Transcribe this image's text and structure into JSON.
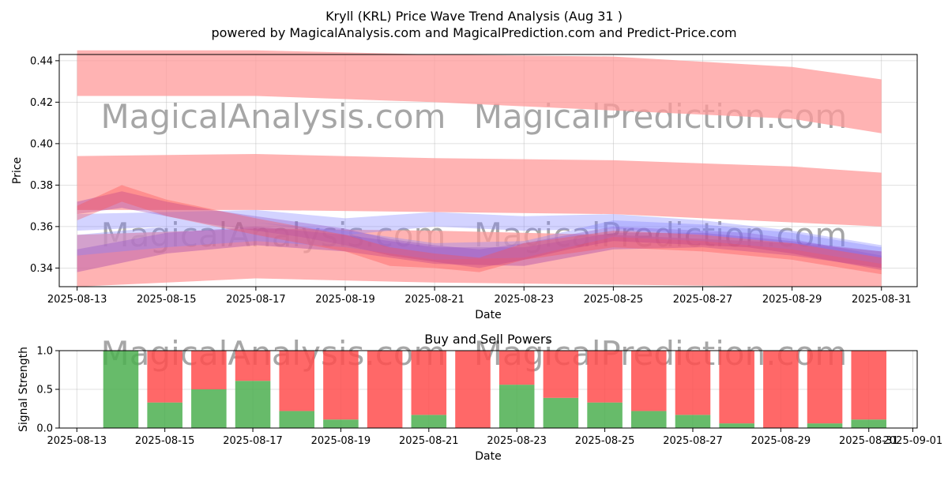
{
  "title_line1": "Kryll (KRL) Price Wave Trend Analysis (Aug 31 )",
  "title_line2": "powered by MagicalAnalysis.com and MagicalPrediction.com and Predict-Price.com",
  "watermarks": [
    "MagicalAnalysis.com",
    "MagicalPrediction.com"
  ],
  "colors": {
    "buy": "#4caf50",
    "sell": "#ff4d4d",
    "band": "#ff9999",
    "wave_blue": "#8080ff",
    "wave_purple": "#9933aa"
  },
  "chart_data": [
    {
      "type": "area",
      "xlabel": "Date",
      "ylabel": "Price",
      "xlim": [
        "2025-08-12.6",
        "2025-08-31.8"
      ],
      "ylim": [
        0.331,
        0.443
      ],
      "x_ticks": [
        "2025-08-13",
        "2025-08-15",
        "2025-08-17",
        "2025-08-19",
        "2025-08-21",
        "2025-08-23",
        "2025-08-25",
        "2025-08-27",
        "2025-08-29",
        "2025-08-31"
      ],
      "y_ticks": [
        0.34,
        0.36,
        0.38,
        0.4,
        0.42,
        0.44
      ],
      "grid": true,
      "bands": [
        {
          "x": [
            "2025-08-13",
            "2025-08-17",
            "2025-08-21",
            "2025-08-25",
            "2025-08-29",
            "2025-08-31"
          ],
          "upper": [
            0.445,
            0.445,
            0.443,
            0.442,
            0.437,
            0.431
          ],
          "lower": [
            0.423,
            0.423,
            0.42,
            0.416,
            0.412,
            0.405
          ]
        },
        {
          "x": [
            "2025-08-13",
            "2025-08-17",
            "2025-08-21",
            "2025-08-25",
            "2025-08-29",
            "2025-08-31"
          ],
          "upper": [
            0.394,
            0.395,
            0.393,
            0.392,
            0.389,
            0.386
          ],
          "lower": [
            0.368,
            0.368,
            0.367,
            0.366,
            0.362,
            0.36
          ]
        },
        {
          "x": [
            "2025-08-13",
            "2025-08-17",
            "2025-08-21",
            "2025-08-25",
            "2025-08-29",
            "2025-08-31"
          ],
          "upper": [
            0.356,
            0.359,
            0.358,
            0.356,
            0.352,
            0.348
          ],
          "lower": [
            0.331,
            0.335,
            0.333,
            0.332,
            0.331,
            0.331
          ]
        }
      ],
      "waves": [
        {
          "color": "wave_purple",
          "x": [
            "2025-08-13",
            "2025-08-14",
            "2025-08-15",
            "2025-08-16",
            "2025-08-17",
            "2025-08-18",
            "2025-08-19",
            "2025-08-20",
            "2025-08-21",
            "2025-08-22",
            "2025-08-23",
            "2025-08-24",
            "2025-08-25",
            "2025-08-26",
            "2025-08-27",
            "2025-08-28",
            "2025-08-29",
            "2025-08-30",
            "2025-08-31"
          ],
          "upper": [
            0.372,
            0.377,
            0.372,
            0.368,
            0.365,
            0.362,
            0.359,
            0.354,
            0.351,
            0.349,
            0.352,
            0.356,
            0.36,
            0.359,
            0.358,
            0.357,
            0.354,
            0.35,
            0.346
          ],
          "lower": [
            0.366,
            0.369,
            0.365,
            0.361,
            0.358,
            0.355,
            0.351,
            0.346,
            0.343,
            0.34,
            0.344,
            0.349,
            0.353,
            0.352,
            0.351,
            0.35,
            0.347,
            0.343,
            0.339
          ]
        },
        {
          "color": "wave_blue",
          "x": [
            "2025-08-13",
            "2025-08-15",
            "2025-08-17",
            "2025-08-19",
            "2025-08-21",
            "2025-08-23",
            "2025-08-25",
            "2025-08-27",
            "2025-08-29",
            "2025-08-31"
          ],
          "upper": [
            0.366,
            0.367,
            0.368,
            0.364,
            0.367,
            0.365,
            0.366,
            0.363,
            0.358,
            0.351
          ],
          "lower": [
            0.358,
            0.36,
            0.362,
            0.356,
            0.36,
            0.358,
            0.359,
            0.356,
            0.352,
            0.345
          ]
        },
        {
          "color": "wave_purple",
          "x": [
            "2025-08-13",
            "2025-08-15",
            "2025-08-17",
            "2025-08-19",
            "2025-08-21",
            "2025-08-23",
            "2025-08-25",
            "2025-08-27",
            "2025-08-29",
            "2025-08-31"
          ],
          "upper": [
            0.349,
            0.357,
            0.36,
            0.356,
            0.35,
            0.35,
            0.357,
            0.357,
            0.353,
            0.348
          ],
          "lower": [
            0.338,
            0.347,
            0.351,
            0.348,
            0.342,
            0.341,
            0.349,
            0.35,
            0.346,
            0.34
          ]
        },
        {
          "color": "wave_blue",
          "x": [
            "2025-08-13",
            "2025-08-15",
            "2025-08-17",
            "2025-08-19",
            "2025-08-21",
            "2025-08-23",
            "2025-08-25",
            "2025-08-27",
            "2025-08-29",
            "2025-08-31"
          ],
          "upper": [
            0.356,
            0.36,
            0.362,
            0.358,
            0.352,
            0.353,
            0.363,
            0.361,
            0.357,
            0.35
          ],
          "lower": [
            0.346,
            0.35,
            0.353,
            0.35,
            0.344,
            0.345,
            0.355,
            0.353,
            0.349,
            0.342
          ]
        },
        {
          "color": "sell",
          "x": [
            "2025-08-13",
            "2025-08-14",
            "2025-08-15",
            "2025-08-17",
            "2025-08-19",
            "2025-08-20",
            "2025-08-21",
            "2025-08-22",
            "2025-08-23",
            "2025-08-25",
            "2025-08-27",
            "2025-08-29",
            "2025-08-31"
          ],
          "upper": [
            0.37,
            0.38,
            0.373,
            0.364,
            0.356,
            0.35,
            0.347,
            0.345,
            0.352,
            0.358,
            0.356,
            0.352,
            0.345
          ],
          "lower": [
            0.363,
            0.372,
            0.365,
            0.356,
            0.348,
            0.341,
            0.34,
            0.338,
            0.344,
            0.35,
            0.348,
            0.344,
            0.337
          ]
        }
      ]
    },
    {
      "type": "bar",
      "title": "Buy and Sell Powers",
      "xlabel": "Date",
      "ylabel": "Signal Strength",
      "xlim": [
        "2025-08-12.6",
        "2025-09-01.1"
      ],
      "ylim": [
        0,
        1.0
      ],
      "x_ticks": [
        "2025-08-13",
        "2025-08-15",
        "2025-08-17",
        "2025-08-19",
        "2025-08-21",
        "2025-08-23",
        "2025-08-25",
        "2025-08-27",
        "2025-08-29",
        "2025-08-31",
        "2025-09-01"
      ],
      "y_ticks": [
        0.0,
        0.5,
        1.0
      ],
      "categories": [
        "2025-08-14",
        "2025-08-15",
        "2025-08-16",
        "2025-08-17",
        "2025-08-18",
        "2025-08-19",
        "2025-08-20",
        "2025-08-21",
        "2025-08-22",
        "2025-08-23",
        "2025-08-24",
        "2025-08-25",
        "2025-08-26",
        "2025-08-27",
        "2025-08-28",
        "2025-08-29",
        "2025-08-30",
        "2025-08-31"
      ],
      "series": [
        {
          "color": "buy",
          "values": [
            1.0,
            0.33,
            0.5,
            0.61,
            0.22,
            0.11,
            0.0,
            0.17,
            0.0,
            0.56,
            0.39,
            0.33,
            0.22,
            0.17,
            0.06,
            0.0,
            0.06,
            0.11
          ]
        },
        {
          "color": "sell",
          "values": [
            0.0,
            0.67,
            0.5,
            0.39,
            0.78,
            0.89,
            1.0,
            0.83,
            1.0,
            0.44,
            0.61,
            0.67,
            0.78,
            0.83,
            0.94,
            1.0,
            0.94,
            0.89
          ]
        }
      ],
      "grid": true
    }
  ]
}
